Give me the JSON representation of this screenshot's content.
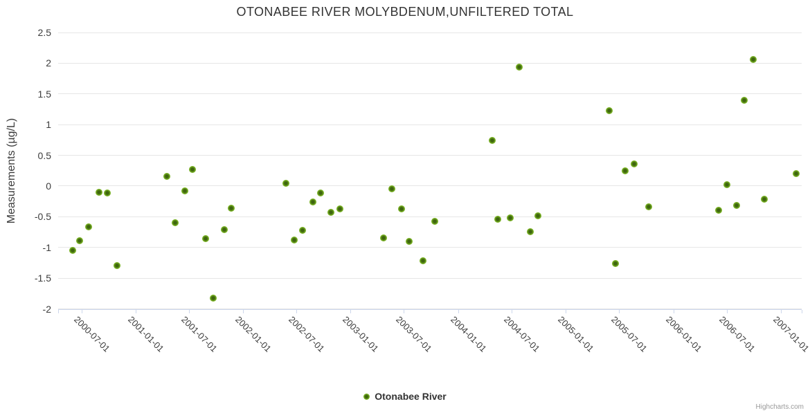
{
  "page": {
    "credits_label": "Highcharts.com"
  },
  "chart_data": {
    "type": "scatter",
    "title": "OTONABEE RIVER MOLYBDENUM,UNFILTERED TOTAL",
    "xlabel": "",
    "ylabel": "Measurements (µg/L)",
    "ylim": [
      -2,
      2.5
    ],
    "ytick_step": 0.5,
    "xlim": [
      "2000-04-13",
      "2007-03-13"
    ],
    "xticks": [
      "2000-07-01",
      "2001-01-01",
      "2001-07-01",
      "2002-01-01",
      "2002-07-01",
      "2003-01-01",
      "2003-07-01",
      "2004-01-01",
      "2004-07-01",
      "2005-01-01",
      "2005-07-01",
      "2006-01-01",
      "2006-07-01",
      "2007-01-01"
    ],
    "grid": "horizontal-only",
    "legend_position": "bottom-center",
    "colors": {
      "marker_outer": "#7ab324",
      "marker_inner": "#3e660e",
      "gridline": "#e6e6e6",
      "axis_line": "#ccd6eb"
    },
    "series": [
      {
        "name": "Otonabee River",
        "points": [
          [
            "2000-06-01",
            -1.05
          ],
          [
            "2000-06-26",
            -0.89
          ],
          [
            "2000-07-25",
            -0.66
          ],
          [
            "2000-08-29",
            -0.1
          ],
          [
            "2000-09-26",
            -0.11
          ],
          [
            "2000-10-29",
            -1.3
          ],
          [
            "2001-04-17",
            0.16
          ],
          [
            "2001-05-16",
            -0.6
          ],
          [
            "2001-06-17",
            -0.08
          ],
          [
            "2001-07-13",
            0.27
          ],
          [
            "2001-08-27",
            -0.86
          ],
          [
            "2001-09-22",
            -1.83
          ],
          [
            "2001-10-30",
            -0.71
          ],
          [
            "2001-11-22",
            -0.36
          ],
          [
            "2002-05-27",
            0.04
          ],
          [
            "2002-06-24",
            -0.88
          ],
          [
            "2002-07-23",
            -0.72
          ],
          [
            "2002-08-27",
            -0.26
          ],
          [
            "2002-09-22",
            -0.11
          ],
          [
            "2002-10-27",
            -0.43
          ],
          [
            "2002-11-27",
            -0.37
          ],
          [
            "2003-04-24",
            -0.84
          ],
          [
            "2003-05-22",
            -0.05
          ],
          [
            "2003-06-22",
            -0.37
          ],
          [
            "2003-07-18",
            -0.9
          ],
          [
            "2003-09-05",
            -1.22
          ],
          [
            "2003-10-15",
            -0.57
          ],
          [
            "2004-04-25",
            0.74
          ],
          [
            "2004-05-14",
            -0.54
          ],
          [
            "2004-06-26",
            -0.52
          ],
          [
            "2004-07-26",
            1.94
          ],
          [
            "2004-09-02",
            -0.74
          ],
          [
            "2004-09-28",
            -0.49
          ],
          [
            "2005-05-29",
            1.23
          ],
          [
            "2005-06-19",
            -1.26
          ],
          [
            "2005-07-22",
            0.25
          ],
          [
            "2005-08-22",
            0.36
          ],
          [
            "2005-10-10",
            -0.34
          ],
          [
            "2006-06-04",
            -0.4
          ],
          [
            "2006-07-02",
            0.02
          ],
          [
            "2006-08-04",
            -0.32
          ],
          [
            "2006-08-30",
            1.4
          ],
          [
            "2006-09-30",
            2.06
          ],
          [
            "2006-11-06",
            -0.22
          ],
          [
            "2007-02-23",
            0.2
          ]
        ]
      }
    ]
  }
}
